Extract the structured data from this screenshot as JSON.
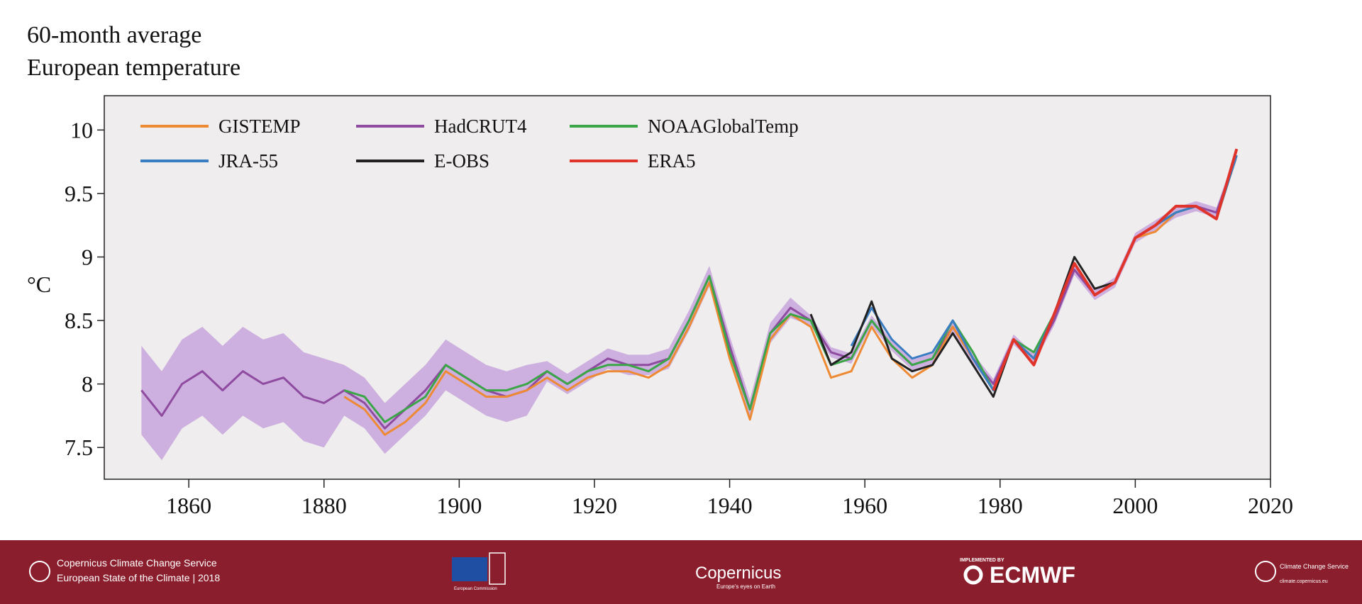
{
  "chart_data": {
    "type": "line",
    "title": [
      "60-month average",
      "European temperature"
    ],
    "ylabel": "°C",
    "x": [
      1853,
      1856,
      1859,
      1862,
      1865,
      1868,
      1871,
      1874,
      1877,
      1880,
      1883,
      1886,
      1889,
      1892,
      1895,
      1898,
      1901,
      1904,
      1907,
      1910,
      1913,
      1916,
      1919,
      1922,
      1925,
      1928,
      1931,
      1934,
      1937,
      1940,
      1943,
      1946,
      1949,
      1952,
      1955,
      1958,
      1961,
      1964,
      1967,
      1970,
      1973,
      1976,
      1979,
      1982,
      1985,
      1988,
      1991,
      1994,
      1997,
      2000,
      2003,
      2006,
      2009,
      2012,
      2015
    ],
    "xlim": [
      1847.5,
      2020
    ],
    "xticks": [
      1860,
      1880,
      1900,
      1920,
      1940,
      1960,
      1980,
      2000,
      2020
    ],
    "ylim": [
      7.25,
      10.27
    ],
    "yticks": [
      7.5,
      8,
      8.5,
      9,
      9.5,
      10
    ],
    "series": [
      {
        "name": "GISTEMP",
        "color": "#ee8a34",
        "values": [
          null,
          null,
          null,
          null,
          null,
          null,
          null,
          null,
          null,
          null,
          7.9,
          7.8,
          7.6,
          7.7,
          7.85,
          8.1,
          8.0,
          7.9,
          7.9,
          7.95,
          8.05,
          7.95,
          8.05,
          8.1,
          8.1,
          8.05,
          8.15,
          8.45,
          8.8,
          8.2,
          7.72,
          8.35,
          8.55,
          8.45,
          8.05,
          8.1,
          8.45,
          8.2,
          8.05,
          8.15,
          8.45,
          8.2,
          7.95,
          8.35,
          8.2,
          8.55,
          8.95,
          8.7,
          8.8,
          9.15,
          9.2,
          9.35,
          9.4,
          9.3,
          9.8
        ]
      },
      {
        "name": "HadCRUT4",
        "color": "#8e4ba0",
        "band_color": "#cdb0df",
        "values": [
          7.95,
          7.75,
          8.0,
          8.1,
          7.95,
          8.1,
          8.0,
          8.05,
          7.9,
          7.85,
          7.95,
          7.85,
          7.65,
          7.8,
          7.95,
          8.15,
          8.05,
          7.95,
          7.9,
          7.95,
          8.1,
          8.0,
          8.1,
          8.2,
          8.15,
          8.15,
          8.2,
          8.5,
          8.85,
          8.3,
          7.8,
          8.4,
          8.6,
          8.5,
          8.25,
          8.2,
          8.5,
          8.3,
          8.15,
          8.2,
          8.45,
          8.2,
          8.0,
          8.35,
          8.2,
          8.5,
          8.9,
          8.7,
          8.8,
          9.15,
          9.25,
          9.35,
          9.4,
          9.35,
          9.8
        ],
        "band": {
          "lower": [
            7.6,
            7.4,
            7.65,
            7.75,
            7.6,
            7.75,
            7.65,
            7.7,
            7.55,
            7.5,
            7.75,
            7.65,
            7.45,
            7.6,
            7.75,
            7.95,
            7.85,
            7.75,
            7.7,
            7.75,
            8.02,
            7.92,
            8.02,
            8.12,
            8.07,
            8.07,
            8.12,
            8.42,
            8.77,
            8.22,
            7.72,
            8.32,
            8.52,
            8.46,
            8.21,
            8.16,
            8.46,
            8.26,
            8.11,
            8.16,
            8.41,
            8.16,
            7.96,
            8.31,
            8.16,
            8.46,
            8.86,
            8.66,
            8.76,
            9.11,
            9.21,
            9.31,
            9.36,
            9.31,
            9.76
          ],
          "upper": [
            8.3,
            8.1,
            8.35,
            8.45,
            8.3,
            8.45,
            8.35,
            8.4,
            8.25,
            8.2,
            8.15,
            8.05,
            7.85,
            8.0,
            8.15,
            8.35,
            8.25,
            8.15,
            8.1,
            8.15,
            8.18,
            8.08,
            8.18,
            8.28,
            8.23,
            8.23,
            8.28,
            8.58,
            8.93,
            8.38,
            7.88,
            8.48,
            8.68,
            8.54,
            8.29,
            8.24,
            8.54,
            8.34,
            8.19,
            8.24,
            8.49,
            8.24,
            8.04,
            8.39,
            8.24,
            8.54,
            8.94,
            8.74,
            8.84,
            9.19,
            9.29,
            9.39,
            9.44,
            9.39,
            9.84
          ]
        }
      },
      {
        "name": "NOAAGlobalTemp",
        "color": "#3ba647",
        "values": [
          null,
          null,
          null,
          null,
          null,
          null,
          null,
          null,
          null,
          null,
          7.95,
          7.9,
          7.7,
          7.8,
          7.9,
          8.15,
          8.05,
          7.95,
          7.95,
          8.0,
          8.1,
          8.0,
          8.1,
          8.15,
          8.15,
          8.1,
          8.2,
          8.5,
          8.85,
          8.25,
          7.8,
          8.4,
          8.55,
          8.5,
          8.15,
          8.2,
          8.5,
          8.3,
          8.15,
          8.2,
          8.5,
          8.25,
          7.95,
          8.35,
          8.25,
          8.55,
          8.95,
          8.7,
          8.8,
          9.15,
          9.25,
          9.35,
          9.4,
          9.3,
          9.8
        ]
      },
      {
        "name": "JRA-55",
        "color": "#3a7dc2",
        "values": [
          null,
          null,
          null,
          null,
          null,
          null,
          null,
          null,
          null,
          null,
          null,
          null,
          null,
          null,
          null,
          null,
          null,
          null,
          null,
          null,
          null,
          null,
          null,
          null,
          null,
          null,
          null,
          null,
          null,
          null,
          null,
          null,
          null,
          null,
          null,
          8.3,
          8.6,
          8.35,
          8.2,
          8.25,
          8.5,
          8.2,
          7.95,
          8.35,
          8.2,
          8.55,
          8.95,
          8.7,
          8.8,
          9.15,
          9.25,
          9.35,
          9.4,
          9.3,
          9.8
        ]
      },
      {
        "name": "E-OBS",
        "color": "#222222",
        "values": [
          null,
          null,
          null,
          null,
          null,
          null,
          null,
          null,
          null,
          null,
          null,
          null,
          null,
          null,
          null,
          null,
          null,
          null,
          null,
          null,
          null,
          null,
          null,
          null,
          null,
          null,
          null,
          null,
          null,
          null,
          null,
          null,
          null,
          8.55,
          8.15,
          8.25,
          8.65,
          8.2,
          8.1,
          8.15,
          8.4,
          8.15,
          7.9,
          8.35,
          8.15,
          8.55,
          9.0,
          8.75,
          8.8,
          9.15,
          9.25,
          9.4,
          9.4,
          9.3,
          9.85
        ]
      },
      {
        "name": "ERA5",
        "color": "#e0332a",
        "values": [
          null,
          null,
          null,
          null,
          null,
          null,
          null,
          null,
          null,
          null,
          null,
          null,
          null,
          null,
          null,
          null,
          null,
          null,
          null,
          null,
          null,
          null,
          null,
          null,
          null,
          null,
          null,
          null,
          null,
          null,
          null,
          null,
          null,
          null,
          null,
          null,
          null,
          null,
          null,
          null,
          null,
          null,
          7.95,
          8.35,
          8.15,
          8.55,
          8.95,
          8.7,
          8.8,
          9.15,
          9.25,
          9.4,
          9.4,
          9.3,
          9.85
        ]
      }
    ]
  },
  "footer": {
    "service": "Copernicus Climate Change Service",
    "report": "European State of the Climate | 2018",
    "eu": "European Commission",
    "copernicus": "Copernicus",
    "copernicus_tag": "Europe's eyes on Earth",
    "implemented": "IMPLEMENTED BY",
    "ecmwf": "ECMWF",
    "c3s": "Climate Change Service",
    "url": "climate.copernicus.eu"
  }
}
